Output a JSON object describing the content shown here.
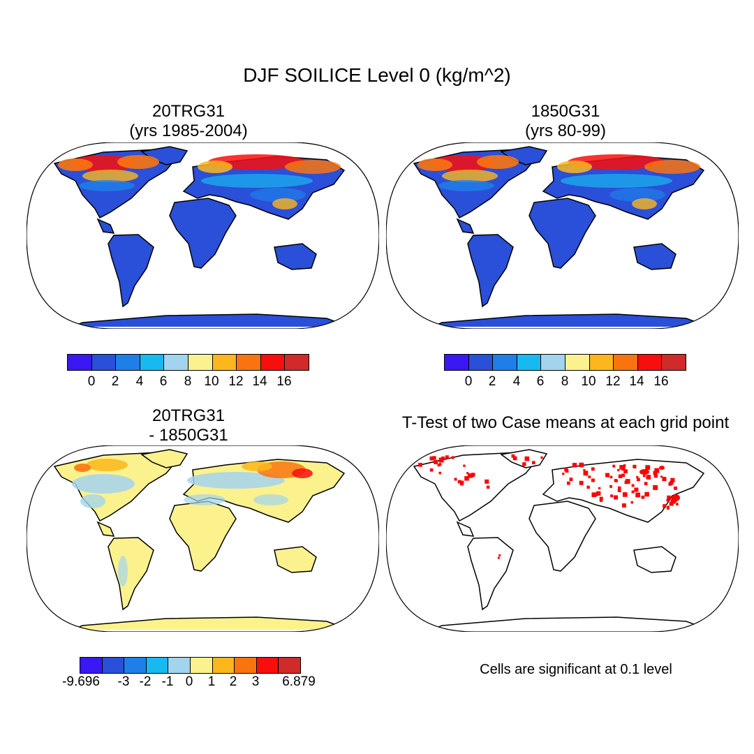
{
  "title": "DJF SOILICE Level 0 (kg/m^2)",
  "colors": [
    "#3a18f2",
    "#2a4fd8",
    "#1f7fe8",
    "#18b8f0",
    "#a3d4ee",
    "#fbf28e",
    "#fbb71c",
    "#f9740f",
    "#f90e0e",
    "#d02a2a"
  ],
  "sig_color": "#ff0000",
  "panels": [
    {
      "title_line1": "20TRG31",
      "title_line2": "(yrs 1985-2004)"
    },
    {
      "title_line1": "1850G31",
      "title_line2": "(yrs 80-99)"
    },
    {
      "title_line1": "20TRG31",
      "title_line2": "- 1850G31"
    },
    {
      "title_line1": "T-Test of two Case means at each grid point"
    }
  ],
  "colorbars": {
    "abs": {
      "labels": [
        "0",
        "2",
        "4",
        "6",
        "8",
        "10",
        "12",
        "14",
        "16"
      ]
    },
    "diff": {
      "labels": [
        "-9.696",
        "-3",
        "-2",
        "-1",
        "0",
        "1",
        "2",
        "3",
        "6.879"
      ]
    }
  },
  "significance_note": "Cells are significant at 0.1 level"
}
